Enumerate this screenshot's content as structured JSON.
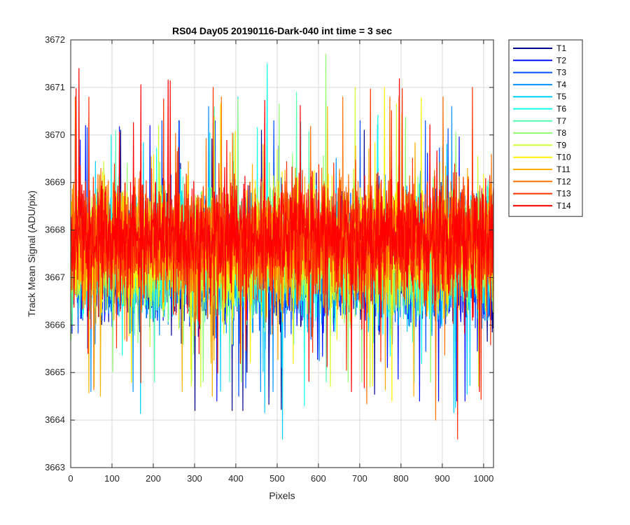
{
  "chart_data": {
    "type": "line",
    "title": "RS04 Day05 20190116-Dark-040 int time = 3 sec",
    "xlabel": "Pixels",
    "ylabel": "Track Mean Signal (ADU/pix)",
    "xlim": [
      0,
      1024
    ],
    "ylim": [
      3663,
      3672
    ],
    "xticks": [
      0,
      100,
      200,
      300,
      400,
      500,
      600,
      700,
      800,
      900,
      1000
    ],
    "yticks": [
      3663,
      3664,
      3665,
      3666,
      3667,
      3668,
      3669,
      3670,
      3671,
      3672
    ],
    "grid": true,
    "legend_position": "outside-top-right",
    "series": [
      {
        "name": "T1",
        "color": "#00008F",
        "mean": 3667.2,
        "min": 3664.2,
        "max": 3670.1
      },
      {
        "name": "T2",
        "color": "#0010FF",
        "mean": 3667.2,
        "min": 3664.4,
        "max": 3670.2
      },
      {
        "name": "T3",
        "color": "#0050FF",
        "mean": 3667.3,
        "min": 3664.5,
        "max": 3670.3
      },
      {
        "name": "T4",
        "color": "#0090FF",
        "mean": 3667.3,
        "min": 3664.6,
        "max": 3670.6
      },
      {
        "name": "T5",
        "color": "#00CFFF",
        "mean": 3667.4,
        "min": 3663.6,
        "max": 3670.8
      },
      {
        "name": "T6",
        "color": "#10FFEF",
        "mean": 3667.4,
        "min": 3664.3,
        "max": 3671.5
      },
      {
        "name": "T7",
        "color": "#50FFAF",
        "mean": 3667.5,
        "min": 3664.8,
        "max": 3670.9
      },
      {
        "name": "T8",
        "color": "#90FF6F",
        "mean": 3667.5,
        "min": 3664.8,
        "max": 3671.7
      },
      {
        "name": "T9",
        "color": "#CFFF30",
        "mean": 3667.6,
        "min": 3664.7,
        "max": 3671.0
      },
      {
        "name": "T10",
        "color": "#FFEF00",
        "mean": 3667.6,
        "min": 3664.4,
        "max": 3671.0
      },
      {
        "name": "T11",
        "color": "#FFAF00",
        "mean": 3667.7,
        "min": 3664.5,
        "max": 3670.6
      },
      {
        "name": "T12",
        "color": "#FF7000",
        "mean": 3667.7,
        "min": 3664.0,
        "max": 3670.8
      },
      {
        "name": "T13",
        "color": "#FF3000",
        "mean": 3667.8,
        "min": 3663.6,
        "max": 3671.0
      },
      {
        "name": "T14",
        "color": "#FF0000",
        "mean": 3667.8,
        "min": 3664.6,
        "max": 3671.4
      }
    ]
  }
}
